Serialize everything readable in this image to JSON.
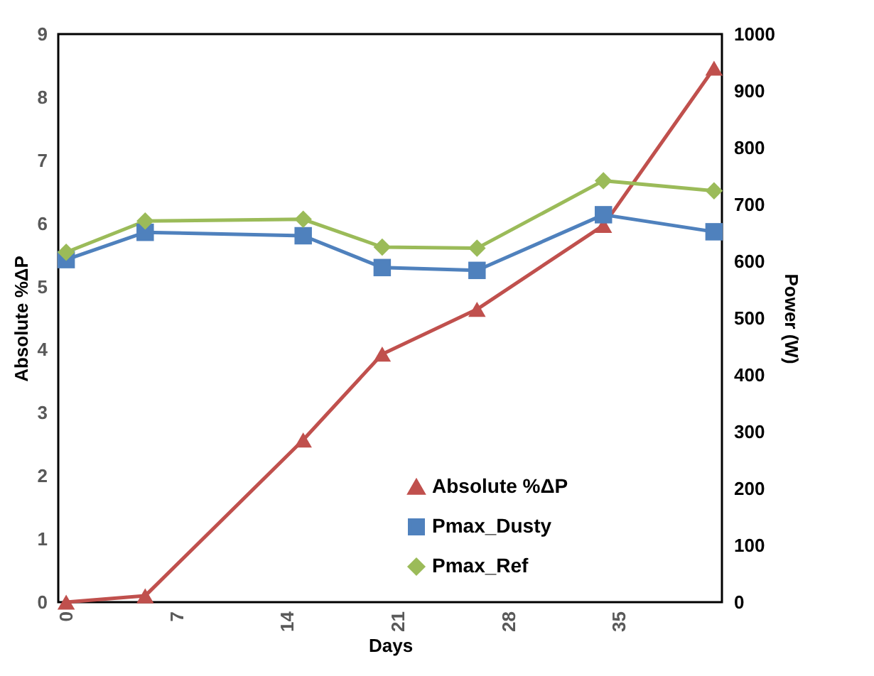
{
  "chart_data": {
    "type": "line",
    "xlabel": "Days",
    "ylabel": "Absolute %ΔP",
    "y2label": "Power (W)",
    "x": [
      0,
      5,
      15,
      20,
      26,
      34,
      41
    ],
    "series": [
      {
        "name": "Absolute  %ΔP",
        "color": "#c0504d",
        "marker": "triangle",
        "values": [
          0,
          0.1,
          2.57,
          3.93,
          4.64,
          5.97,
          8.46
        ]
      },
      {
        "name": "Pmax_Dusty",
        "color": "#4f81bd",
        "marker": "square",
        "axis": "y2",
        "values": [
          603,
          651,
          645,
          589,
          584,
          682,
          652
        ]
      },
      {
        "name": "Pmax_Ref",
        "color": "#9bbb59",
        "marker": "diamond",
        "axis": "y2",
        "values": [
          616,
          671,
          674,
          625,
          623,
          742,
          724
        ]
      }
    ],
    "xlim": [
      -0.5,
      41.5
    ],
    "xticks": [
      0,
      7,
      14,
      21,
      28,
      35
    ],
    "ylim": [
      0,
      9
    ],
    "yticks": [
      0,
      1,
      2,
      3,
      4,
      5,
      6,
      7,
      8,
      9
    ],
    "y2lim": [
      0,
      1000
    ],
    "y2ticks": [
      0,
      100,
      200,
      300,
      400,
      500,
      600,
      700,
      800,
      900,
      1000
    ],
    "grid": false,
    "legend": "bottom right",
    "line_style": "solid"
  }
}
